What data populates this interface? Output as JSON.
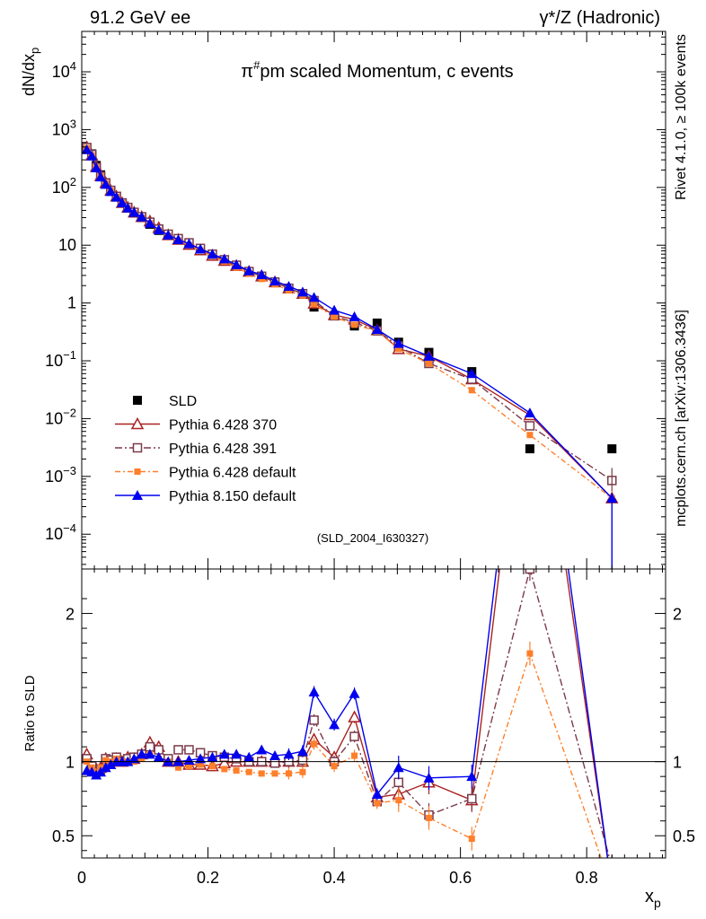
{
  "header": {
    "left": "91.2 GeV ee",
    "right": "γ*/Z (Hadronic)"
  },
  "side_text": {
    "rivet": "Rivet 4.1.0, ≥ 100k events",
    "mcplots": "mcplots.cern.ch [arXiv:1306.3436]"
  },
  "chart_data": [
    {
      "type": "scatter",
      "panel": "main",
      "title": "π#pm scaled Momentum, c events",
      "title_main": "π",
      "title_sup": "#",
      "title_rest": "pm scaled Momentum, c events",
      "xlabel": "x",
      "xlabel_sub": "p",
      "ylabel": "dN/dx",
      "ylabel_sub": "p",
      "yscale": "log",
      "xlim": [
        0,
        0.925
      ],
      "ylim": [
        2.5e-05,
        50000
      ],
      "annotation": "(SLD_2004_I630327)",
      "legend_position": "lower-left",
      "y_tick_labels": [
        "10^-4",
        "10^-3",
        "10^-2",
        "10^-1",
        "1",
        "10",
        "10^2",
        "10^3",
        "10^4"
      ],
      "x": [
        0.008,
        0.016,
        0.023,
        0.03,
        0.038,
        0.046,
        0.055,
        0.064,
        0.073,
        0.083,
        0.095,
        0.108,
        0.122,
        0.137,
        0.153,
        0.17,
        0.188,
        0.207,
        0.226,
        0.245,
        0.265,
        0.285,
        0.306,
        0.328,
        0.35,
        0.368,
        0.4,
        0.432,
        0.468,
        0.502,
        0.55,
        0.618,
        0.71,
        0.84
      ],
      "series": [
        {
          "name": "SLD",
          "values": [
            480,
            380,
            240,
            165,
            118,
            88,
            68,
            54,
            44,
            36,
            30,
            23,
            18,
            15,
            12.5,
            10.5,
            8.4,
            6.8,
            5.5,
            4.4,
            3.5,
            2.9,
            2.3,
            1.8,
            1.45,
            0.85,
            0.6,
            0.4,
            0.45,
            0.21,
            0.14,
            0.065,
            0.003,
            0.003
          ],
          "color": "#000000",
          "marker": "filled-square"
        },
        {
          "name": "Pythia 6.428 370",
          "values": [
            500,
            360,
            228,
            158,
            120,
            88,
            70,
            54,
            45,
            37,
            31,
            26,
            20,
            15,
            12.5,
            10.2,
            8.2,
            6.6,
            5.4,
            4.4,
            3.5,
            2.9,
            2.3,
            1.8,
            1.45,
            0.98,
            0.62,
            0.52,
            0.34,
            0.16,
            0.12,
            0.048,
            0.0115,
            0.00042
          ],
          "color": "#aa2222",
          "marker": "open-triangle"
        },
        {
          "name": "Pythia 6.428 391",
          "values": [
            490,
            370,
            222,
            156,
            120,
            89,
            70,
            54,
            45,
            37,
            31,
            25,
            19,
            15.5,
            13,
            11,
            8.8,
            7.0,
            5.6,
            4.5,
            3.5,
            2.9,
            2.3,
            1.8,
            1.45,
            1.1,
            0.6,
            0.46,
            0.33,
            0.18,
            0.09,
            0.048,
            0.0075,
            0.00085
          ],
          "color": "#7a3a4a",
          "marker": "open-square"
        },
        {
          "name": "Pythia 6.428 default",
          "values": [
            480,
            360,
            222,
            158,
            119,
            88,
            69,
            54,
            44,
            36,
            30,
            24,
            18,
            14.5,
            12,
            10,
            8.1,
            6.5,
            5.2,
            4.1,
            3.2,
            2.6,
            2.1,
            1.65,
            1.35,
            0.95,
            0.58,
            0.42,
            0.33,
            0.16,
            0.09,
            0.031,
            0.0052,
            0.00042
          ],
          "color": "#ff7f2a",
          "marker": "filled-square-small"
        },
        {
          "name": "Pythia 8.150 default",
          "values": [
            450,
            350,
            218,
            152,
            113,
            85,
            68,
            54,
            44,
            37,
            31,
            24,
            18.5,
            15,
            12.5,
            10.6,
            8.6,
            7.0,
            5.8,
            4.6,
            3.6,
            3.1,
            2.4,
            1.95,
            1.55,
            1.25,
            0.75,
            0.58,
            0.35,
            0.2,
            0.12,
            0.06,
            0.0125,
            0.00042
          ],
          "color": "#0000ee",
          "marker": "filled-triangle"
        }
      ]
    },
    {
      "type": "line",
      "panel": "ratio",
      "ylabel": "Ratio to SLD",
      "xlabel": "x",
      "xlabel_sub": "p",
      "ylim": [
        0.35,
        2.3
      ],
      "xlim": [
        0,
        0.925
      ],
      "x_tick_labels": [
        "0",
        "0.2",
        "0.4",
        "0.6",
        "0.8"
      ],
      "y_tick_labels": [
        "0.5",
        "1",
        "2"
      ],
      "reference_line": 1,
      "x": [
        0.008,
        0.016,
        0.023,
        0.03,
        0.038,
        0.046,
        0.055,
        0.064,
        0.073,
        0.083,
        0.095,
        0.108,
        0.122,
        0.137,
        0.153,
        0.17,
        0.188,
        0.207,
        0.226,
        0.245,
        0.265,
        0.285,
        0.306,
        0.328,
        0.35,
        0.368,
        0.4,
        0.432,
        0.468,
        0.502,
        0.55,
        0.618,
        0.71,
        0.84
      ],
      "series": [
        {
          "name": "Pythia 6.428 370",
          "values": [
            1.05,
            0.95,
            0.95,
            0.96,
            1.02,
            1.0,
            1.02,
            1.0,
            1.03,
            1.02,
            1.05,
            1.13,
            1.1,
            1.0,
            1.0,
            0.98,
            0.98,
            0.97,
            0.99,
            1.0,
            1.0,
            1.0,
            1.0,
            1.0,
            1.0,
            1.15,
            1.03,
            1.3,
            0.76,
            0.78,
            0.86,
            0.74,
            4.0,
            0.14
          ],
          "color": "#aa2222"
        },
        {
          "name": "Pythia 6.428 391",
          "values": [
            1.02,
            0.97,
            0.93,
            0.95,
            1.02,
            1.01,
            1.03,
            1.0,
            1.02,
            1.03,
            1.05,
            1.1,
            1.08,
            1.02,
            1.08,
            1.08,
            1.06,
            1.04,
            1.03,
            1.02,
            1.0,
            1.0,
            0.99,
            1.0,
            1.01,
            1.28,
            1.0,
            1.17,
            0.73,
            0.86,
            0.64,
            0.75,
            2.3,
            0.29
          ],
          "color": "#7a3a4a"
        },
        {
          "name": "Pythia 6.428 default",
          "values": [
            1.0,
            0.96,
            0.93,
            0.96,
            1.01,
            1.0,
            1.02,
            1.0,
            1.0,
            1.0,
            1.02,
            1.05,
            1.02,
            1.0,
            0.96,
            0.97,
            0.98,
            0.97,
            0.95,
            0.94,
            0.93,
            0.92,
            0.92,
            0.92,
            0.93,
            1.12,
            0.97,
            1.04,
            0.72,
            0.74,
            0.62,
            0.48,
            1.73,
            0.14
          ],
          "color": "#ff7f2a"
        },
        {
          "name": "Pythia 8.150 default",
          "values": [
            0.94,
            0.93,
            0.91,
            0.93,
            0.96,
            0.98,
            1.0,
            1.0,
            1.0,
            1.02,
            1.05,
            1.05,
            1.03,
            1.0,
            1.0,
            1.01,
            1.02,
            1.03,
            1.05,
            1.05,
            1.03,
            1.08,
            1.04,
            1.05,
            1.07,
            1.47,
            1.25,
            1.46,
            0.78,
            0.96,
            0.89,
            0.9,
            4.2,
            0.14
          ],
          "color": "#0000ee"
        }
      ]
    }
  ]
}
